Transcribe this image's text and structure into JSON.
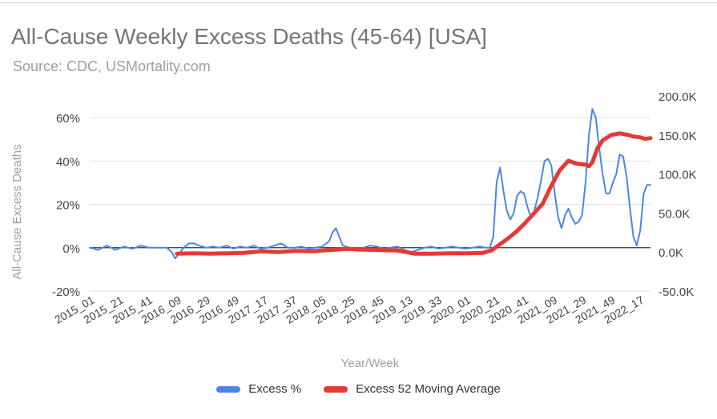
{
  "chart_data": {
    "type": "line",
    "title": "All-Cause Weekly Excess Deaths (45-64) [USA]",
    "subtitle": "Source: CDC, USMortality.com",
    "xlabel": "Year/Week",
    "ylabel_left": "All-Cause Excess Deaths",
    "ylabel_right": "",
    "left_axis": {
      "min": -20,
      "max": 70,
      "ticks": [
        60,
        40,
        20,
        0,
        -20
      ],
      "tick_labels": [
        "60%",
        "40%",
        "20%",
        "0%",
        "-20%"
      ]
    },
    "right_axis": {
      "min": -50000,
      "max": 200000,
      "ticks": [
        200000,
        150000,
        100000,
        50000,
        0,
        -50000
      ],
      "tick_labels": [
        "200.0K",
        "150.0K",
        "100.0K",
        "50.0K",
        "0.0K",
        "-50.0K"
      ]
    },
    "x_tick_labels": [
      "2015_01",
      "2015_21",
      "2015_41",
      "2016_09",
      "2016_29",
      "2016_49",
      "2017_17",
      "2017_37",
      "2018_05",
      "2018_25",
      "2018_45",
      "2019_13",
      "2019_33",
      "2020_01",
      "2020_21",
      "2020_41",
      "2021_09",
      "2021_29",
      "2021_49",
      "2022_17"
    ],
    "series": [
      {
        "name": "Excess %",
        "color": "#4a86e8",
        "axis": "left",
        "points": [
          [
            0,
            0
          ],
          [
            5,
            -1
          ],
          [
            10,
            1
          ],
          [
            15,
            -1
          ],
          [
            20,
            0.5
          ],
          [
            25,
            -0.5
          ],
          [
            30,
            1
          ],
          [
            35,
            0
          ],
          [
            40,
            0
          ],
          [
            45,
            0
          ],
          [
            48,
            -2
          ],
          [
            50,
            -5
          ],
          [
            52,
            -3
          ],
          [
            55,
            0
          ],
          [
            58,
            2
          ],
          [
            61,
            2
          ],
          [
            64,
            1
          ],
          [
            68,
            0
          ],
          [
            72,
            0.5
          ],
          [
            76,
            0
          ],
          [
            80,
            1
          ],
          [
            84,
            -0.5
          ],
          [
            88,
            0.5
          ],
          [
            92,
            0
          ],
          [
            96,
            1
          ],
          [
            100,
            -0.5
          ],
          [
            104,
            0
          ],
          [
            108,
            1
          ],
          [
            112,
            2
          ],
          [
            116,
            0
          ],
          [
            120,
            0
          ],
          [
            124,
            0.5
          ],
          [
            128,
            -0.5
          ],
          [
            132,
            0
          ],
          [
            136,
            0.5
          ],
          [
            140,
            3
          ],
          [
            142,
            7
          ],
          [
            144,
            9
          ],
          [
            146,
            5
          ],
          [
            148,
            1
          ],
          [
            152,
            0
          ],
          [
            156,
            -1
          ],
          [
            160,
            0
          ],
          [
            164,
            1
          ],
          [
            168,
            0.5
          ],
          [
            172,
            -0.5
          ],
          [
            176,
            0
          ],
          [
            180,
            0.5
          ],
          [
            184,
            -1
          ],
          [
            188,
            -2
          ],
          [
            192,
            -1
          ],
          [
            196,
            0
          ],
          [
            200,
            0.5
          ],
          [
            204,
            -0.5
          ],
          [
            208,
            0
          ],
          [
            212,
            0.5
          ],
          [
            216,
            0
          ],
          [
            220,
            -0.5
          ],
          [
            224,
            0
          ],
          [
            228,
            0.5
          ],
          [
            232,
            0
          ],
          [
            234,
            0
          ],
          [
            236,
            5
          ],
          [
            238,
            30
          ],
          [
            240,
            37
          ],
          [
            242,
            26
          ],
          [
            244,
            17
          ],
          [
            246,
            13
          ],
          [
            248,
            16
          ],
          [
            250,
            24
          ],
          [
            252,
            26
          ],
          [
            254,
            25
          ],
          [
            256,
            19
          ],
          [
            258,
            14
          ],
          [
            260,
            17
          ],
          [
            262,
            23
          ],
          [
            264,
            31
          ],
          [
            266,
            40
          ],
          [
            268,
            41
          ],
          [
            270,
            38
          ],
          [
            272,
            25
          ],
          [
            274,
            14
          ],
          [
            276,
            9
          ],
          [
            278,
            15
          ],
          [
            280,
            18
          ],
          [
            282,
            14
          ],
          [
            284,
            11
          ],
          [
            286,
            12
          ],
          [
            288,
            15
          ],
          [
            290,
            30
          ],
          [
            292,
            52
          ],
          [
            294,
            64
          ],
          [
            296,
            60
          ],
          [
            298,
            46
          ],
          [
            300,
            34
          ],
          [
            302,
            25
          ],
          [
            304,
            25
          ],
          [
            306,
            30
          ],
          [
            308,
            34
          ],
          [
            310,
            43
          ],
          [
            312,
            42
          ],
          [
            314,
            33
          ],
          [
            316,
            18
          ],
          [
            318,
            5
          ],
          [
            320,
            1
          ],
          [
            322,
            8
          ],
          [
            324,
            25
          ],
          [
            326,
            29
          ],
          [
            328,
            29
          ]
        ]
      },
      {
        "name": "Excess 52 Moving Average",
        "color": "#e53935",
        "axis": "right",
        "points": [
          [
            51,
            -2000
          ],
          [
            60,
            -1500
          ],
          [
            70,
            -2000
          ],
          [
            80,
            -1500
          ],
          [
            90,
            -1000
          ],
          [
            100,
            1000
          ],
          [
            110,
            0
          ],
          [
            120,
            1500
          ],
          [
            130,
            1000
          ],
          [
            140,
            2500
          ],
          [
            150,
            4000
          ],
          [
            160,
            3000
          ],
          [
            170,
            2500
          ],
          [
            180,
            2000
          ],
          [
            190,
            -2000
          ],
          [
            200,
            -2000
          ],
          [
            210,
            -1500
          ],
          [
            220,
            -1500
          ],
          [
            230,
            -1000
          ],
          [
            235,
            2000
          ],
          [
            240,
            10000
          ],
          [
            245,
            18000
          ],
          [
            250,
            27000
          ],
          [
            255,
            38000
          ],
          [
            260,
            50000
          ],
          [
            265,
            62000
          ],
          [
            270,
            85000
          ],
          [
            275,
            105000
          ],
          [
            280,
            117000
          ],
          [
            285,
            113000
          ],
          [
            290,
            112000
          ],
          [
            292,
            110000
          ],
          [
            294,
            115000
          ],
          [
            297,
            133000
          ],
          [
            300,
            143000
          ],
          [
            305,
            150000
          ],
          [
            310,
            152000
          ],
          [
            315,
            150000
          ],
          [
            318,
            148000
          ],
          [
            322,
            147000
          ],
          [
            325,
            145000
          ],
          [
            328,
            146000
          ]
        ]
      }
    ],
    "zero_line": true,
    "grid": true,
    "legend_position": "bottom"
  }
}
